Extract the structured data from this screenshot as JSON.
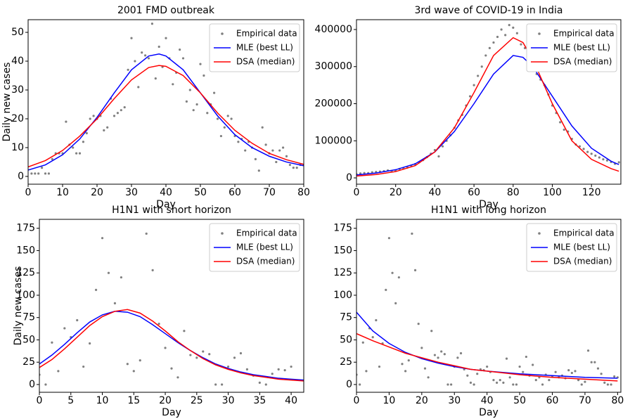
{
  "chart_data": [
    {
      "type": "scatter",
      "title": "2001 FMD outbreak",
      "xlabel": "Day",
      "ylabel": "Daily new cases",
      "xlim": [
        0,
        80
      ],
      "ylim": [
        -2.7,
        54.4
      ],
      "xticks": [
        0,
        10,
        20,
        30,
        40,
        50,
        60,
        70,
        80
      ],
      "yticks": [
        0,
        10,
        20,
        30,
        40,
        50
      ],
      "legend": "upper right",
      "series": [
        {
          "name": "Empirical data",
          "type": "scatter",
          "color": "#808080",
          "x": [
            1,
            2,
            3,
            4,
            5,
            6,
            7,
            8,
            9,
            10,
            11,
            12,
            13,
            14,
            15,
            16,
            17,
            18,
            19,
            20,
            21,
            22,
            23,
            24,
            25,
            26,
            27,
            28,
            29,
            30,
            31,
            32,
            33,
            34,
            35,
            36,
            37,
            38,
            39,
            40,
            41,
            42,
            43,
            44,
            45,
            46,
            47,
            48,
            49,
            50,
            51,
            52,
            53,
            54,
            55,
            56,
            57,
            58,
            59,
            60,
            61,
            62,
            63,
            64,
            65,
            66,
            67,
            68,
            69,
            70,
            71,
            72,
            73,
            74,
            75,
            76,
            77,
            78,
            79,
            80
          ],
          "values": [
            1,
            1,
            1,
            3,
            1,
            1,
            6,
            8,
            8,
            8,
            19,
            11,
            10,
            8,
            8,
            12,
            15,
            20,
            21,
            20,
            21,
            16,
            17,
            27,
            21,
            22,
            23,
            24,
            37,
            48,
            40,
            31,
            43,
            42,
            41,
            53,
            34,
            45,
            38,
            48,
            41,
            32,
            36,
            44,
            41,
            26,
            30,
            23,
            25,
            39,
            35,
            22,
            25,
            29,
            20,
            14,
            17,
            21,
            20,
            14,
            12,
            13,
            9,
            12,
            10,
            6,
            2,
            17,
            11,
            8,
            9,
            5,
            9,
            10,
            7,
            4,
            3,
            3,
            4,
            4
          ]
        },
        {
          "name": "MLE (best LL)",
          "type": "line",
          "color": "#0000ff",
          "x": [
            0,
            5,
            10,
            15,
            20,
            25,
            30,
            35,
            38,
            40,
            45,
            50,
            55,
            60,
            65,
            70,
            75,
            80
          ],
          "values": [
            2.2,
            4,
            7.5,
            13,
            20.5,
            29,
            37,
            41.8,
            42.5,
            41.8,
            37,
            29,
            21,
            14.5,
            10,
            7,
            5,
            3.7
          ]
        },
        {
          "name": "DSA (median)",
          "type": "line",
          "color": "#ff0000",
          "x": [
            0,
            5,
            10,
            15,
            20,
            25,
            30,
            35,
            38,
            40,
            45,
            50,
            55,
            60,
            65,
            70,
            75,
            80
          ],
          "values": [
            3.3,
            5.5,
            9,
            14,
            20,
            27,
            33.5,
            37.8,
            38.5,
            38.2,
            35,
            29,
            22,
            16,
            11.5,
            8,
            5.8,
            4.2
          ]
        }
      ]
    },
    {
      "type": "scatter",
      "title": "3rd wave of COVID-19 in India",
      "xlabel": "Day",
      "xlim": [
        0,
        135
      ],
      "ylim": [
        -17000,
        426500
      ],
      "xticks": [
        0,
        20,
        40,
        60,
        80,
        100,
        120
      ],
      "yticks": [
        0,
        100000,
        200000,
        300000,
        400000
      ],
      "legend": "upper right",
      "series": [
        {
          "name": "Empirical data",
          "type": "scatter",
          "color": "#808080",
          "x": [
            0,
            2,
            4,
            6,
            8,
            10,
            12,
            14,
            16,
            18,
            20,
            22,
            24,
            26,
            28,
            30,
            32,
            34,
            36,
            38,
            40,
            42,
            44,
            46,
            48,
            50,
            52,
            54,
            56,
            58,
            60,
            62,
            64,
            66,
            68,
            70,
            72,
            74,
            76,
            78,
            80,
            82,
            84,
            86,
            88,
            90,
            92,
            94,
            96,
            98,
            100,
            102,
            104,
            106,
            108,
            110,
            112,
            114,
            116,
            118,
            120,
            122,
            124,
            126,
            128,
            130,
            132,
            134
          ],
          "values": [
            10000,
            12000,
            13000,
            13000,
            15000,
            16000,
            17000,
            18000,
            20000,
            18000,
            20000,
            24000,
            25000,
            28000,
            32000,
            37000,
            42000,
            48000,
            56000,
            65000,
            75000,
            58000,
            85000,
            100000,
            115000,
            135000,
            155000,
            170000,
            195000,
            220000,
            250000,
            275000,
            300000,
            330000,
            350000,
            365000,
            380000,
            400000,
            385000,
            412000,
            405000,
            390000,
            360000,
            350000,
            330000,
            300000,
            280000,
            265000,
            250000,
            225000,
            195000,
            175000,
            150000,
            130000,
            125000,
            105000,
            90000,
            85000,
            78000,
            70000,
            65000,
            60000,
            55000,
            50000,
            47000,
            43000,
            38000,
            42000
          ]
        },
        {
          "name": "MLE (best LL)",
          "type": "line",
          "color": "#0000ff",
          "x": [
            0,
            10,
            20,
            30,
            40,
            50,
            60,
            70,
            80,
            85,
            90,
            100,
            110,
            120,
            130,
            134
          ],
          "values": [
            8000,
            13000,
            22000,
            38000,
            70000,
            125000,
            200000,
            280000,
            330000,
            325000,
            300000,
            220000,
            140000,
            80000,
            45000,
            36000
          ]
        },
        {
          "name": "DSA (median)",
          "type": "line",
          "color": "#ff0000",
          "x": [
            0,
            10,
            20,
            30,
            40,
            50,
            60,
            70,
            80,
            85,
            90,
            100,
            110,
            120,
            130,
            134
          ],
          "values": [
            5000,
            9000,
            17000,
            33000,
            70000,
            135000,
            230000,
            330000,
            378000,
            365000,
            320000,
            200000,
            100000,
            50000,
            25000,
            18000
          ]
        }
      ]
    },
    {
      "type": "scatter",
      "title": "H1N1 with short horizon",
      "xlabel": "Day",
      "ylabel": "Daily new cases",
      "xlim": [
        0,
        42
      ],
      "ylim": [
        -8.7,
        185
      ],
      "xticks": [
        0,
        5,
        10,
        15,
        20,
        25,
        30,
        35,
        40
      ],
      "yticks": [
        0,
        25,
        50,
        75,
        100,
        125,
        150,
        175
      ],
      "legend": "upper right",
      "series": [
        {
          "name": "Empirical data",
          "type": "scatter",
          "color": "#808080",
          "x": [
            0,
            1,
            2,
            3,
            4,
            5,
            6,
            7,
            8,
            9,
            10,
            11,
            12,
            13,
            14,
            15,
            16,
            17,
            18,
            19,
            20,
            21,
            22,
            23,
            24,
            25,
            26,
            27,
            28,
            29,
            30,
            31,
            32,
            33,
            34,
            35,
            36,
            37,
            38,
            39,
            40
          ],
          "values": [
            11,
            0,
            47,
            15,
            63,
            53,
            72,
            20,
            46,
            106,
            164,
            125,
            91,
            120,
            23,
            15,
            27,
            169,
            128,
            68,
            41,
            18,
            8,
            60,
            33,
            30,
            37,
            34,
            0,
            0,
            20,
            30,
            35,
            17,
            10,
            2,
            0,
            12,
            17,
            16,
            20
          ]
        },
        {
          "name": "MLE (best LL)",
          "type": "line",
          "color": "#0000ff",
          "x": [
            0,
            2,
            4,
            6,
            8,
            10,
            12,
            14,
            16,
            18,
            20,
            22,
            24,
            26,
            28,
            30,
            32,
            34,
            36,
            38,
            40,
            42
          ],
          "values": [
            23,
            33,
            45,
            58,
            70,
            78,
            82,
            81,
            76,
            67,
            57,
            47,
            38,
            30,
            23,
            18,
            14,
            11,
            9,
            7,
            6,
            5
          ]
        },
        {
          "name": "DSA (median)",
          "type": "line",
          "color": "#ff0000",
          "x": [
            0,
            2,
            4,
            6,
            8,
            10,
            12,
            14,
            16,
            18,
            20,
            22,
            24,
            26,
            28,
            30,
            32,
            34,
            36,
            38,
            40,
            42
          ],
          "values": [
            19,
            28,
            40,
            53,
            66,
            76,
            82,
            84,
            80,
            71,
            60,
            48,
            38,
            29,
            22,
            17,
            13,
            10,
            8,
            6,
            5,
            4
          ]
        }
      ]
    },
    {
      "type": "scatter",
      "title": "H1N1 with long horizon",
      "xlabel": "Day",
      "xlim": [
        0,
        81
      ],
      "ylim": [
        -8.7,
        185
      ],
      "xticks": [
        0,
        10,
        20,
        30,
        40,
        50,
        60,
        70,
        80
      ],
      "yticks": [
        0,
        25,
        50,
        75,
        100,
        125,
        150,
        175
      ],
      "legend": "upper right",
      "series": [
        {
          "name": "Empirical data",
          "type": "scatter",
          "color": "#808080",
          "x": [
            0,
            1,
            2,
            3,
            4,
            5,
            6,
            7,
            8,
            9,
            10,
            11,
            12,
            13,
            14,
            15,
            16,
            17,
            18,
            19,
            20,
            21,
            22,
            23,
            24,
            25,
            26,
            27,
            28,
            29,
            30,
            31,
            32,
            33,
            34,
            35,
            36,
            37,
            38,
            39,
            40,
            41,
            42,
            43,
            44,
            45,
            46,
            47,
            48,
            49,
            50,
            51,
            52,
            53,
            54,
            55,
            56,
            57,
            58,
            59,
            60,
            61,
            62,
            63,
            64,
            65,
            66,
            67,
            68,
            69,
            70,
            71,
            72,
            73,
            74,
            75,
            76,
            77,
            78,
            79,
            80
          ],
          "values": [
            11,
            0,
            47,
            15,
            63,
            53,
            72,
            20,
            46,
            106,
            164,
            125,
            91,
            120,
            23,
            15,
            27,
            169,
            128,
            68,
            41,
            18,
            8,
            60,
            33,
            30,
            37,
            34,
            0,
            0,
            20,
            30,
            35,
            17,
            10,
            2,
            0,
            12,
            17,
            16,
            20,
            14,
            5,
            2,
            5,
            2,
            29,
            8,
            0,
            0,
            20,
            14,
            31,
            10,
            22,
            5,
            8,
            0,
            11,
            5,
            9,
            14,
            8,
            10,
            7,
            16,
            13,
            15,
            5,
            0,
            3,
            38,
            25,
            25,
            18,
            12,
            2,
            0,
            0,
            9,
            8
          ]
        },
        {
          "name": "MLE (best LL)",
          "type": "line",
          "color": "#0000ff",
          "x": [
            0,
            5,
            10,
            15,
            20,
            25,
            30,
            35,
            40,
            50,
            60,
            70,
            80
          ],
          "values": [
            81,
            60,
            46,
            36,
            29,
            24,
            20,
            17,
            15,
            12,
            10,
            8,
            7
          ]
        },
        {
          "name": "DSA (median)",
          "type": "line",
          "color": "#ff0000",
          "x": [
            0,
            5,
            10,
            15,
            20,
            25,
            30,
            35,
            40,
            50,
            60,
            70,
            80
          ],
          "values": [
            57,
            49,
            42,
            35,
            30,
            25,
            21,
            17,
            15,
            11,
            8,
            6,
            4
          ]
        }
      ]
    }
  ]
}
